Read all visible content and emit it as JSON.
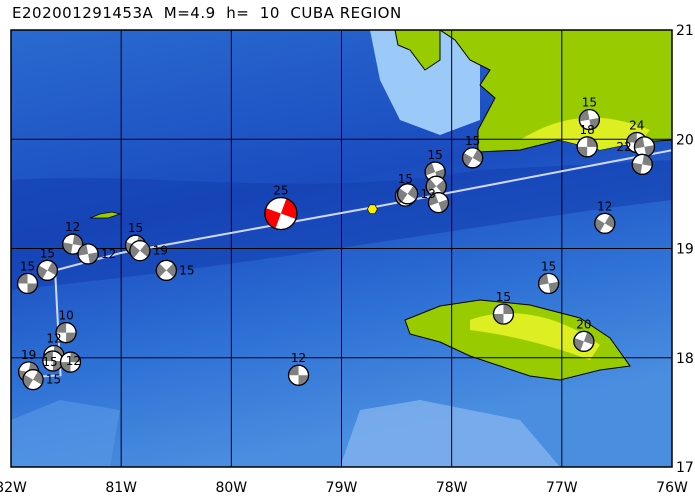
{
  "title": "E202001291453A  M=4.9  h=  10  CUBA REGION",
  "axes": {
    "lon_labels": [
      "82W",
      "81W",
      "80W",
      "79W",
      "78W",
      "77W",
      "76W"
    ],
    "lat_labels": [
      "21N",
      "20N",
      "19N",
      "18N",
      "17N"
    ],
    "lon_range": [
      -82,
      -76
    ],
    "lat_range": [
      17,
      21
    ]
  },
  "colors": {
    "land": "#99cc00",
    "main_event": "#ff0000",
    "other_event": "#808080",
    "fault_line": "#d0d8ff",
    "hexagon": "#ffee00"
  },
  "main_event": {
    "label": "25",
    "lon": -79.55,
    "lat": 19.32,
    "rot": 20
  },
  "events": [
    {
      "label": "12",
      "lon": -81.44,
      "lat": 19.04,
      "rot": 10
    },
    {
      "label": "12",
      "lon": -81.3,
      "lat": 18.95,
      "rot": 80
    },
    {
      "label": "15",
      "lon": -81.67,
      "lat": 18.8,
      "rot": 30
    },
    {
      "label": "15",
      "lon": -81.85,
      "lat": 18.68,
      "rot": 90
    },
    {
      "label": "15",
      "lon": -80.87,
      "lat": 19.03,
      "rot": 20
    },
    {
      "label": "19",
      "lon": -80.83,
      "lat": 18.98,
      "rot": 40
    },
    {
      "label": "15",
      "lon": -80.59,
      "lat": 18.8,
      "rot": 45
    },
    {
      "label": "10",
      "lon": -81.5,
      "lat": 18.23,
      "rot": 90
    },
    {
      "label": "12",
      "lon": -81.61,
      "lat": 18.02,
      "rot": 0
    },
    {
      "label": "12",
      "lon": -81.62,
      "lat": 17.97,
      "rot": 90
    },
    {
      "label": "15",
      "lon": -81.46,
      "lat": 17.96,
      "rot": 0
    },
    {
      "label": "19",
      "lon": -81.84,
      "lat": 17.87,
      "rot": 10
    },
    {
      "label": "15",
      "lon": -81.8,
      "lat": 17.8,
      "rot": 30
    },
    {
      "label": "12",
      "lon": -79.39,
      "lat": 17.84,
      "rot": 90
    },
    {
      "label": "15",
      "lon": -78.42,
      "lat": 19.48,
      "rot": 35
    },
    {
      "label": "13",
      "lon": -78.4,
      "lat": 19.5,
      "rot": 35
    },
    {
      "label": "15",
      "lon": -78.15,
      "lat": 19.7,
      "rot": 70
    },
    {
      "label": "",
      "lon": -78.14,
      "lat": 19.57,
      "rot": 50
    },
    {
      "label": "",
      "lon": -78.12,
      "lat": 19.42,
      "rot": 70
    },
    {
      "label": "15",
      "lon": -77.81,
      "lat": 19.83,
      "rot": 30
    },
    {
      "label": "15",
      "lon": -76.75,
      "lat": 20.18,
      "rot": 80
    },
    {
      "label": "18",
      "lon": -76.77,
      "lat": 19.93,
      "rot": 0
    },
    {
      "label": "24",
      "lon": -76.32,
      "lat": 19.97,
      "rot": 90
    },
    {
      "label": "22",
      "lon": -76.25,
      "lat": 19.93,
      "rot": 80
    },
    {
      "label": "",
      "lon": -76.27,
      "lat": 19.77,
      "rot": 10
    },
    {
      "label": "12",
      "lon": -76.61,
      "lat": 19.23,
      "rot": 30
    },
    {
      "label": "15",
      "lon": -77.12,
      "lat": 18.68,
      "rot": 80
    },
    {
      "label": "15",
      "lon": -77.53,
      "lat": 18.4,
      "rot": 0
    },
    {
      "label": "20",
      "lon": -76.8,
      "lat": 18.15,
      "rot": 20
    }
  ],
  "hexagon": {
    "lon": -78.72,
    "lat": 19.36
  },
  "fault_line": [
    [
      -76.0,
      19.9
    ],
    [
      -78.7,
      19.38
    ],
    [
      -81.0,
      18.96
    ],
    [
      -81.6,
      18.8
    ],
    [
      -81.55,
      17.84
    ],
    [
      -81.85,
      17.82
    ]
  ]
}
